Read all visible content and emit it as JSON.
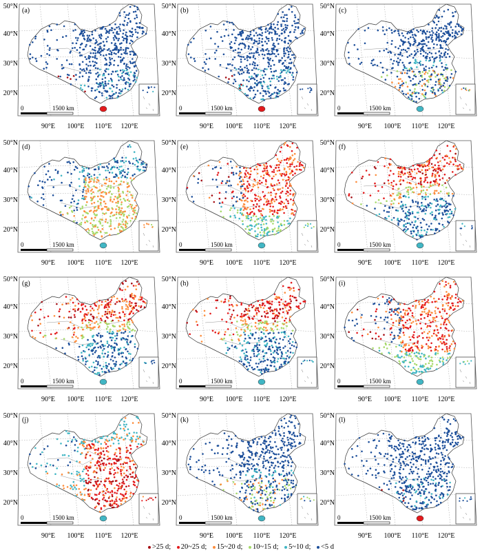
{
  "figure": {
    "panels": [
      {
        "label": "(a)",
        "scheme": "few"
      },
      {
        "label": "(b)",
        "scheme": "few"
      },
      {
        "label": "(c)",
        "scheme": "low"
      },
      {
        "label": "(d)",
        "scheme": "mid"
      },
      {
        "label": "(e)",
        "scheme": "high"
      },
      {
        "label": "(f)",
        "scheme": "northHot"
      },
      {
        "label": "(g)",
        "scheme": "northHot"
      },
      {
        "label": "(h)",
        "scheme": "northHot"
      },
      {
        "label": "(i)",
        "scheme": "high"
      },
      {
        "label": "(j)",
        "scheme": "hot"
      },
      {
        "label": "(k)",
        "scheme": "low"
      },
      {
        "label": "(l)",
        "scheme": "few"
      }
    ],
    "lat_labels": [
      "50°N",
      "40°N",
      "30°N",
      "20°N"
    ],
    "lon_labels": [
      "90°E",
      "100°E",
      "110°E",
      "120°E"
    ],
    "scale_bar": {
      "zero": "0",
      "text": "1500 km"
    },
    "legend": {
      "items": [
        {
          "label": ">25 d",
          "color": "#a50f15"
        },
        {
          "label": "20~25 d",
          "color": "#e31a1c"
        },
        {
          "label": "15~20 d",
          "color": "#fd8d3c"
        },
        {
          "label": "10~15 d",
          "color": "#a6d96a"
        },
        {
          "label": "5~10 d",
          "color": "#41b6c4"
        },
        {
          "label": "<5 d",
          "color": "#1d4f9a"
        }
      ]
    }
  }
}
